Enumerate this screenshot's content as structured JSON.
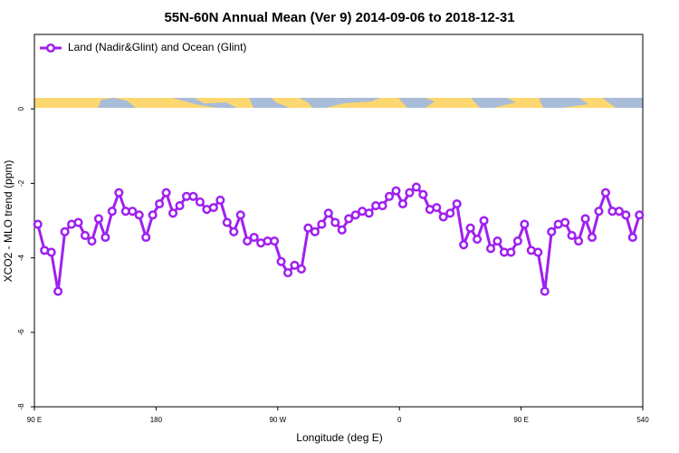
{
  "chart_data": {
    "type": "line",
    "title": "55N-60N Annual Mean (Ver 9)   2014-09-06 to 2018-12-31",
    "x_label": "Longitude (deg E)",
    "y_label": "XCO2 - MLO trend (ppm)",
    "x": [
      92.5,
      97.5,
      102.5,
      107.5,
      112.5,
      117.5,
      122.5,
      127.5,
      132.5,
      137.5,
      142.5,
      147.5,
      152.5,
      157.5,
      162.5,
      167.5,
      172.5,
      177.5,
      182.5,
      187.5,
      192.5,
      197.5,
      202.5,
      207.5,
      212.5,
      217.5,
      222.5,
      227.5,
      232.5,
      237.5,
      242.5,
      247.5,
      252.5,
      257.5,
      262.5,
      267.5,
      272.5,
      277.5,
      282.5,
      287.5,
      292.5,
      297.5,
      302.5,
      307.5,
      312.5,
      317.5,
      322.5,
      327.5,
      332.5,
      337.5,
      342.5,
      347.5,
      352.5,
      357.5,
      362.5,
      367.5,
      372.5,
      377.5,
      382.5,
      387.5,
      392.5,
      397.5,
      402.5,
      407.5,
      412.5,
      417.5,
      422.5,
      427.5,
      432.5,
      437.5,
      442.5,
      447.5,
      452.5,
      457.5,
      462.5,
      467.5,
      472.5,
      477.5,
      482.5,
      487.5,
      492.5,
      497.5,
      502.5,
      507.5,
      512.5,
      517.5,
      522.5,
      527.5,
      532.5,
      537.5
    ],
    "series": [
      {
        "name": "Land (Nadir&Glint) and Ocean (Glint)",
        "color": "#a020f0",
        "values": [
          -3.1,
          -3.8,
          -3.85,
          -4.9,
          -3.3,
          -3.1,
          -3.05,
          -3.4,
          -3.55,
          -2.95,
          -3.45,
          -2.75,
          -2.25,
          -2.75,
          -2.75,
          -2.85,
          -3.45,
          -2.85,
          -2.55,
          -2.25,
          -2.8,
          -2.6,
          -2.35,
          -2.35,
          -2.5,
          -2.7,
          -2.65,
          -2.45,
          -3.05,
          -3.3,
          -2.85,
          -3.55,
          -3.45,
          -3.6,
          -3.55,
          -3.55,
          -4.1,
          -4.4,
          -4.2,
          -4.3,
          -3.2,
          -3.3,
          -3.1,
          -2.8,
          -3.05,
          -3.25,
          -2.95,
          -2.85,
          -2.75,
          -2.8,
          -2.6,
          -2.6,
          -2.35,
          -2.2,
          -2.55,
          -2.25,
          -2.1,
          -2.3,
          -2.7,
          -2.65,
          -2.9,
          -2.8,
          -2.55,
          -3.65,
          -3.2,
          -3.5,
          -3.0,
          -3.75,
          -3.55,
          -3.85,
          -3.85,
          -3.55,
          -3.1,
          -3.8,
          -3.85,
          -4.9,
          -3.3,
          -3.1,
          -3.05,
          -3.4,
          -3.55,
          -2.95,
          -3.45,
          -2.75,
          -2.25,
          -2.75,
          -2.75,
          -2.85,
          -3.45,
          -2.85
        ]
      }
    ],
    "xlim": [
      90,
      540
    ],
    "xticks": [
      {
        "value": 90,
        "label": "90 E"
      },
      180,
      {
        "value": 270,
        "label": "90 W"
      },
      {
        "value": 360,
        "label": "0"
      },
      {
        "value": 450,
        "label": "90 E"
      },
      540
    ],
    "ylim": [
      -8,
      2
    ],
    "yticks": [
      0,
      -2,
      -4,
      -6,
      -8
    ],
    "legend": "top-left"
  }
}
